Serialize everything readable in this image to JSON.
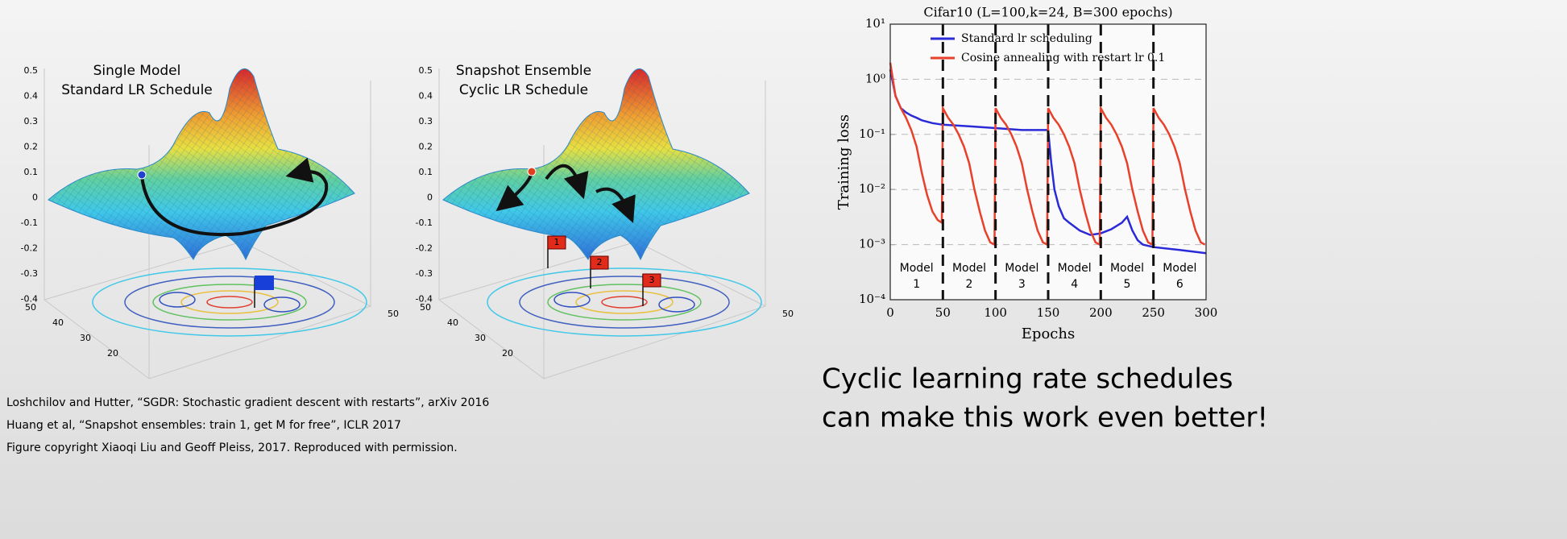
{
  "surface_plots": [
    {
      "title": [
        "Single Model",
        "Standard LR Schedule"
      ],
      "zticks": [
        0.5,
        0.4,
        0.3,
        0.2,
        0.1,
        0,
        -0.1,
        -0.2,
        -0.3,
        -0.4
      ],
      "xticks": [
        50,
        40,
        30,
        20
      ],
      "yticks": [
        50
      ],
      "flags": []
    },
    {
      "title": [
        "Snapshot Ensemble",
        "Cyclic LR Schedule"
      ],
      "zticks": [
        0.5,
        0.4,
        0.3,
        0.2,
        0.1,
        0,
        -0.1,
        -0.2,
        -0.3,
        -0.4
      ],
      "xticks": [
        50,
        40,
        30,
        20
      ],
      "yticks": [
        50
      ],
      "flags": [
        "1",
        "2",
        "3"
      ]
    }
  ],
  "chart_data": {
    "type": "line",
    "title": "Cifar10 (L=100,k=24, B=300 epochs)",
    "xlabel": "Epochs",
    "ylabel": "Training loss",
    "log_y": true,
    "grid": true,
    "legend": "upper left",
    "xlim": [
      0,
      300
    ],
    "xticks": [
      0,
      50,
      100,
      150,
      200,
      250,
      300
    ],
    "ylim": [
      0.0001,
      10
    ],
    "yticks": [
      {
        "value": 10,
        "label": "10¹"
      },
      {
        "value": 1,
        "label": "10⁰"
      },
      {
        "value": 0.1,
        "label": "10⁻¹"
      },
      {
        "value": 0.01,
        "label": "10⁻²"
      },
      {
        "value": 0.001,
        "label": "10⁻³"
      },
      {
        "value": 0.0001,
        "label": "10⁻⁴"
      }
    ],
    "restarts": [
      50,
      100,
      150,
      200,
      250
    ],
    "annotations": [
      {
        "lines": [
          "Model",
          "1"
        ],
        "x": 25
      },
      {
        "lines": [
          "Model",
          "2"
        ],
        "x": 75
      },
      {
        "lines": [
          "Model",
          "3"
        ],
        "x": 125
      },
      {
        "lines": [
          "Model",
          "4"
        ],
        "x": 175
      },
      {
        "lines": [
          "Model",
          "5"
        ],
        "x": 225
      },
      {
        "lines": [
          "Model",
          "6"
        ],
        "x": 275
      }
    ],
    "series": [
      {
        "name": "Standard lr scheduling",
        "color": "#2a2ad8",
        "x": [
          0,
          5,
          10,
          15,
          20,
          25,
          30,
          40,
          50,
          75,
          100,
          125,
          150,
          153,
          156,
          160,
          165,
          170,
          180,
          190,
          200,
          210,
          220,
          225,
          230,
          235,
          240,
          250,
          275,
          300
        ],
        "values": [
          1.5,
          0.5,
          0.3,
          0.25,
          0.22,
          0.2,
          0.18,
          0.16,
          0.15,
          0.14,
          0.13,
          0.12,
          0.12,
          0.03,
          0.01,
          0.005,
          0.003,
          0.0025,
          0.0018,
          0.0015,
          0.0016,
          0.0019,
          0.0025,
          0.0032,
          0.0018,
          0.0012,
          0.001,
          0.0009,
          0.0008,
          0.0007
        ]
      },
      {
        "name": "Cosine annealing with restart lr 0.1",
        "color": "#e8402a",
        "x": [
          0,
          5,
          10,
          15,
          20,
          25,
          30,
          35,
          40,
          45,
          49,
          50,
          55,
          60,
          65,
          70,
          75,
          80,
          85,
          90,
          95,
          99,
          100,
          105,
          110,
          115,
          120,
          125,
          130,
          135,
          140,
          145,
          149,
          150,
          155,
          160,
          165,
          170,
          175,
          180,
          185,
          190,
          195,
          199,
          200,
          205,
          210,
          215,
          220,
          225,
          230,
          235,
          240,
          245,
          249,
          250,
          255,
          260,
          265,
          270,
          275,
          280,
          285,
          290,
          295,
          299
        ],
        "values": [
          2.0,
          0.5,
          0.3,
          0.2,
          0.12,
          0.06,
          0.02,
          0.008,
          0.004,
          0.0028,
          0.0025,
          0.3,
          0.2,
          0.15,
          0.1,
          0.06,
          0.03,
          0.01,
          0.004,
          0.0018,
          0.0011,
          0.001,
          0.3,
          0.2,
          0.15,
          0.1,
          0.06,
          0.03,
          0.01,
          0.004,
          0.0018,
          0.0011,
          0.001,
          0.3,
          0.2,
          0.15,
          0.1,
          0.06,
          0.03,
          0.01,
          0.004,
          0.0018,
          0.0011,
          0.001,
          0.3,
          0.2,
          0.15,
          0.1,
          0.06,
          0.03,
          0.01,
          0.004,
          0.0018,
          0.0011,
          0.001,
          0.3,
          0.2,
          0.15,
          0.1,
          0.06,
          0.03,
          0.01,
          0.004,
          0.0018,
          0.0011,
          0.001
        ]
      }
    ]
  },
  "caption": [
    "Cyclic learning rate schedules",
    "can make this work even better!"
  ],
  "references": [
    "Loshchilov and Hutter, “SGDR: Stochastic gradient descent with restarts”, arXiv 2016",
    "Huang et al, “Snapshot ensembles: train 1, get M for free”, ICLR 2017",
    "Figure copyright Xiaoqi Liu and Geoff Pleiss, 2017. Reproduced with permission."
  ]
}
